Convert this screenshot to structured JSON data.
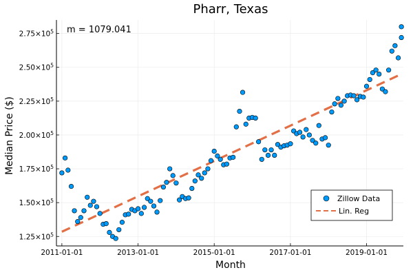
{
  "chart_data": {
    "type": "scatter",
    "title": "Pharr, Texas",
    "xlabel": "Month",
    "ylabel": "Median Price ($)",
    "annotation": "m = 1079.041",
    "xlim": [
      "2010-11-10",
      "2019-12-20"
    ],
    "ylim": [
      118000,
      285000
    ],
    "x_ticks": [
      "2011-01-01",
      "2013-01-01",
      "2015-01-01",
      "2017-01-01",
      "2019-01-01"
    ],
    "y_ticks": [
      {
        "value": 125000,
        "mantissa": "1.25"
      },
      {
        "value": 150000,
        "mantissa": "1.50"
      },
      {
        "value": 175000,
        "mantissa": "1.75"
      },
      {
        "value": 200000,
        "mantissa": "2.00"
      },
      {
        "value": 225000,
        "mantissa": "2.25"
      },
      {
        "value": 250000,
        "mantissa": "2.50"
      },
      {
        "value": 275000,
        "mantissa": "2.75"
      }
    ],
    "y_tick_suffix": "×10",
    "y_tick_exponent": "5",
    "grid": true,
    "legend_position": "bottom-right",
    "series": [
      {
        "name": "Zillow Data",
        "type": "scatter",
        "color": "#009AFA",
        "points": [
          {
            "x": "2011-01-01",
            "y": 172000
          },
          {
            "x": "2011-02-01",
            "y": 183000
          },
          {
            "x": "2011-03-01",
            "y": 174000
          },
          {
            "x": "2011-04-01",
            "y": 162000
          },
          {
            "x": "2011-05-01",
            "y": 144000
          },
          {
            "x": "2011-06-01",
            "y": 136000
          },
          {
            "x": "2011-07-01",
            "y": 139000
          },
          {
            "x": "2011-08-01",
            "y": 144000
          },
          {
            "x": "2011-09-01",
            "y": 154000
          },
          {
            "x": "2011-10-01",
            "y": 148000
          },
          {
            "x": "2011-11-01",
            "y": 151000
          },
          {
            "x": "2011-12-01",
            "y": 147000
          },
          {
            "x": "2012-01-01",
            "y": 142000
          },
          {
            "x": "2012-02-01",
            "y": 134000
          },
          {
            "x": "2012-03-01",
            "y": 134500
          },
          {
            "x": "2012-04-01",
            "y": 128000
          },
          {
            "x": "2012-05-01",
            "y": 125000
          },
          {
            "x": "2012-06-01",
            "y": 123500
          },
          {
            "x": "2012-07-01",
            "y": 130000
          },
          {
            "x": "2012-08-01",
            "y": 135500
          },
          {
            "x": "2012-09-01",
            "y": 141000
          },
          {
            "x": "2012-10-01",
            "y": 141500
          },
          {
            "x": "2012-11-01",
            "y": 145000
          },
          {
            "x": "2012-12-01",
            "y": 144000
          },
          {
            "x": "2013-01-01",
            "y": 145500
          },
          {
            "x": "2013-02-01",
            "y": 142000
          },
          {
            "x": "2013-03-01",
            "y": 146500
          },
          {
            "x": "2013-04-01",
            "y": 153000
          },
          {
            "x": "2013-05-01",
            "y": 151000
          },
          {
            "x": "2013-06-01",
            "y": 147500
          },
          {
            "x": "2013-07-01",
            "y": 143000
          },
          {
            "x": "2013-08-01",
            "y": 151500
          },
          {
            "x": "2013-09-01",
            "y": 161500
          },
          {
            "x": "2013-10-01",
            "y": 165000
          },
          {
            "x": "2013-11-01",
            "y": 175000
          },
          {
            "x": "2013-12-01",
            "y": 170000
          },
          {
            "x": "2014-01-01",
            "y": 164500
          },
          {
            "x": "2014-02-01",
            "y": 152000
          },
          {
            "x": "2014-03-01",
            "y": 154500
          },
          {
            "x": "2014-04-01",
            "y": 153000
          },
          {
            "x": "2014-05-01",
            "y": 153500
          },
          {
            "x": "2014-06-01",
            "y": 160500
          },
          {
            "x": "2014-07-01",
            "y": 166000
          },
          {
            "x": "2014-08-01",
            "y": 170500
          },
          {
            "x": "2014-09-01",
            "y": 168000
          },
          {
            "x": "2014-10-01",
            "y": 172000
          },
          {
            "x": "2014-11-01",
            "y": 175000
          },
          {
            "x": "2014-12-01",
            "y": 181000
          },
          {
            "x": "2015-01-01",
            "y": 188000
          },
          {
            "x": "2015-02-01",
            "y": 184500
          },
          {
            "x": "2015-03-01",
            "y": 182000
          },
          {
            "x": "2015-04-01",
            "y": 178000
          },
          {
            "x": "2015-05-01",
            "y": 178500
          },
          {
            "x": "2015-06-01",
            "y": 183000
          },
          {
            "x": "2015-07-01",
            "y": 183500
          },
          {
            "x": "2015-08-01",
            "y": 206000
          },
          {
            "x": "2015-09-01",
            "y": 217500
          },
          {
            "x": "2015-10-01",
            "y": 231500
          },
          {
            "x": "2015-11-01",
            "y": 208000
          },
          {
            "x": "2015-12-01",
            "y": 212500
          },
          {
            "x": "2016-01-01",
            "y": 213000
          },
          {
            "x": "2016-02-01",
            "y": 212500
          },
          {
            "x": "2016-03-01",
            "y": 195000
          },
          {
            "x": "2016-04-01",
            "y": 182000
          },
          {
            "x": "2016-05-01",
            "y": 189000
          },
          {
            "x": "2016-06-01",
            "y": 185000
          },
          {
            "x": "2016-07-01",
            "y": 189000
          },
          {
            "x": "2016-08-01",
            "y": 185000
          },
          {
            "x": "2016-09-01",
            "y": 193000
          },
          {
            "x": "2016-10-01",
            "y": 191000
          },
          {
            "x": "2016-11-01",
            "y": 192000
          },
          {
            "x": "2016-12-01",
            "y": 192500
          },
          {
            "x": "2017-01-01",
            "y": 193500
          },
          {
            "x": "2017-02-01",
            "y": 203000
          },
          {
            "x": "2017-03-01",
            "y": 201000
          },
          {
            "x": "2017-04-01",
            "y": 202000
          },
          {
            "x": "2017-05-01",
            "y": 198500
          },
          {
            "x": "2017-06-01",
            "y": 204000
          },
          {
            "x": "2017-07-01",
            "y": 200000
          },
          {
            "x": "2017-08-01",
            "y": 196000
          },
          {
            "x": "2017-09-01",
            "y": 194000
          },
          {
            "x": "2017-10-01",
            "y": 207000
          },
          {
            "x": "2017-11-01",
            "y": 197000
          },
          {
            "x": "2017-12-01",
            "y": 198000
          },
          {
            "x": "2018-01-01",
            "y": 192500
          },
          {
            "x": "2018-02-01",
            "y": 217000
          },
          {
            "x": "2018-03-01",
            "y": 223000
          },
          {
            "x": "2018-04-01",
            "y": 227000
          },
          {
            "x": "2018-05-01",
            "y": 222000
          },
          {
            "x": "2018-06-01",
            "y": 225000
          },
          {
            "x": "2018-07-01",
            "y": 229000
          },
          {
            "x": "2018-08-01",
            "y": 229500
          },
          {
            "x": "2018-09-01",
            "y": 229000
          },
          {
            "x": "2018-10-01",
            "y": 226000
          },
          {
            "x": "2018-11-01",
            "y": 228500
          },
          {
            "x": "2018-12-01",
            "y": 228000
          },
          {
            "x": "2019-01-01",
            "y": 236000
          },
          {
            "x": "2019-02-01",
            "y": 241000
          },
          {
            "x": "2019-03-01",
            "y": 246000
          },
          {
            "x": "2019-04-01",
            "y": 248000
          },
          {
            "x": "2019-05-01",
            "y": 245000
          },
          {
            "x": "2019-06-01",
            "y": 234000
          },
          {
            "x": "2019-07-01",
            "y": 232000
          },
          {
            "x": "2019-08-01",
            "y": 248000
          },
          {
            "x": "2019-09-01",
            "y": 262000
          },
          {
            "x": "2019-10-01",
            "y": 266000
          },
          {
            "x": "2019-11-01",
            "y": 257000
          },
          {
            "x": "2019-12-01",
            "y": 272000
          },
          {
            "x": "2019-12-01",
            "y": 280000
          }
        ]
      },
      {
        "name": "Lin. Reg",
        "type": "line",
        "style": "dashed",
        "color": "#E26F46",
        "points": [
          {
            "x": "2011-01-01",
            "y": 128500
          },
          {
            "x": "2019-12-01",
            "y": 245000
          }
        ]
      }
    ]
  }
}
